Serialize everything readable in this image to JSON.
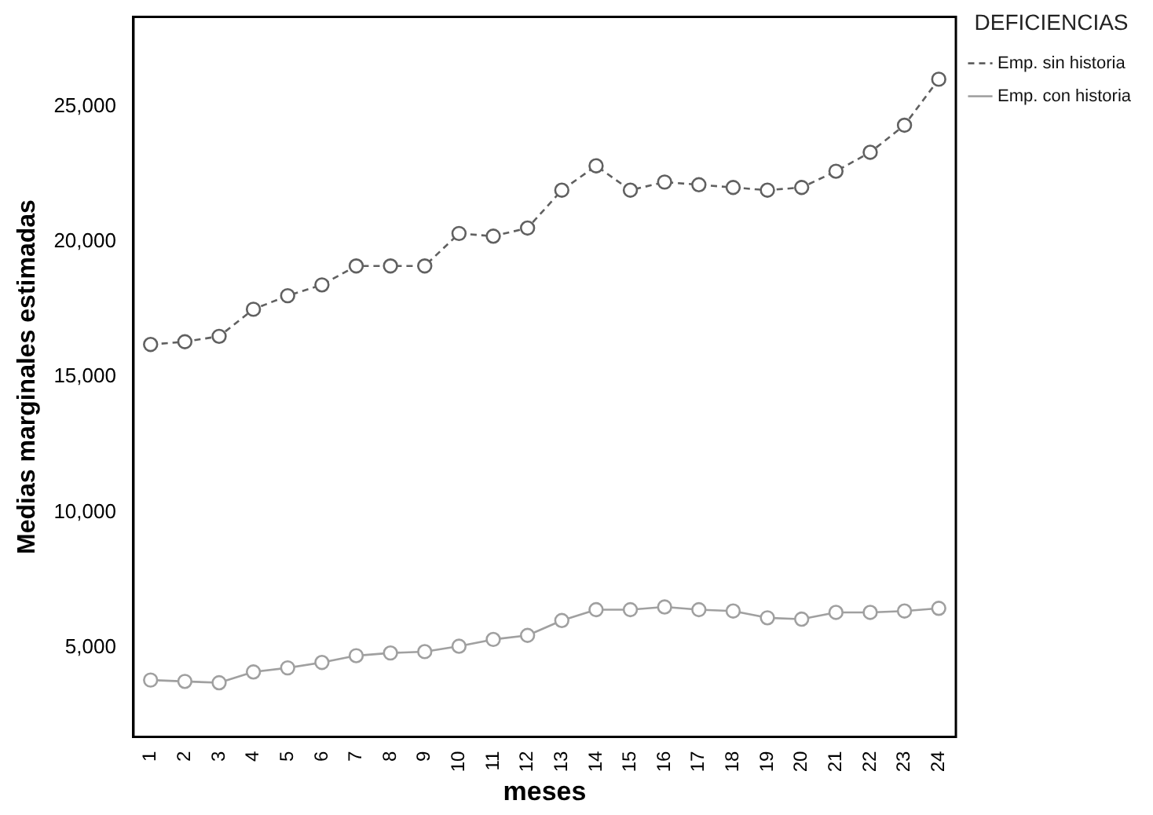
{
  "chart_data": {
    "type": "line",
    "xlabel": "meses",
    "ylabel": "Medias marginales estimadas",
    "legend_title": "DEFICIENCIAS",
    "categories": [
      "1",
      "2",
      "3",
      "4",
      "5",
      "6",
      "7",
      "8",
      "9",
      "10",
      "11",
      "12",
      "13",
      "14",
      "15",
      "16",
      "17",
      "18",
      "19",
      "20",
      "21",
      "22",
      "23",
      "24"
    ],
    "series": [
      {
        "name": "Emp. sin historia",
        "color": "#606060",
        "line_style": "dashed",
        "values": [
          16200,
          16300,
          16500,
          17500,
          18000,
          18400,
          19100,
          19100,
          19100,
          20300,
          20200,
          20500,
          21900,
          22800,
          21900,
          22200,
          22100,
          22000,
          21900,
          22000,
          22600,
          23300,
          24300,
          26000
        ]
      },
      {
        "name": "Emp. con historia",
        "color": "#a0a0a0",
        "line_style": "solid",
        "values": [
          3800,
          3750,
          3700,
          4100,
          4250,
          4450,
          4700,
          4800,
          4850,
          5050,
          5300,
          5450,
          6000,
          6400,
          6400,
          6500,
          6400,
          6350,
          6100,
          6050,
          6300,
          6300,
          6350,
          6450
        ]
      }
    ],
    "ylim": [
      1700,
      28300
    ],
    "yticks": [
      {
        "value": 5000,
        "label": "5,000"
      },
      {
        "value": 10000,
        "label": "10,000"
      },
      {
        "value": 15000,
        "label": "15,000"
      },
      {
        "value": 20000,
        "label": "20,000"
      },
      {
        "value": 25000,
        "label": "25,000"
      }
    ],
    "marker": "circle",
    "grid": false,
    "legend": "right"
  }
}
